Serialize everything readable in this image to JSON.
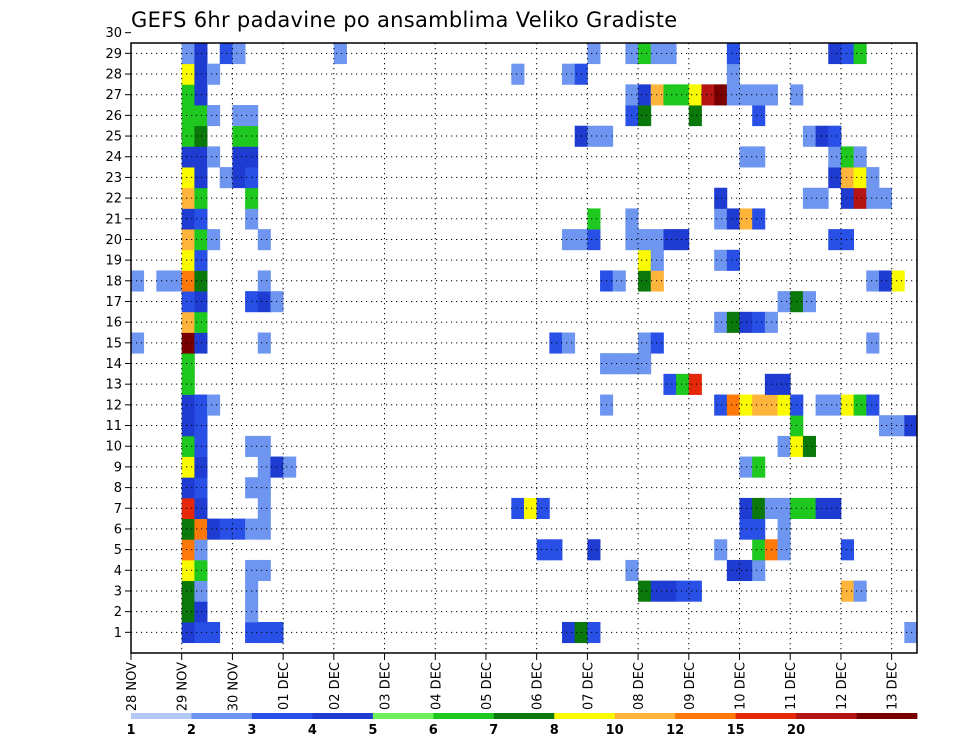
{
  "chart_data": {
    "type": "heatmap",
    "title": "GEFS 6hr padavine po ansamblima Veliko Gradiste",
    "xlabel": "",
    "ylabel": "",
    "y_members": [
      1,
      30
    ],
    "y_ticks": [
      "1",
      "2",
      "3",
      "4",
      "5",
      "6",
      "7",
      "8",
      "9",
      "10",
      "11",
      "12",
      "13",
      "14",
      "15",
      "16",
      "17",
      "18",
      "19",
      "20",
      "21",
      "22",
      "23",
      "24",
      "25",
      "26",
      "27",
      "28",
      "29",
      "30"
    ],
    "x_range_steps": [
      0,
      62
    ],
    "x_ticks": [
      {
        "label": "28 NOV",
        "step": 0
      },
      {
        "label": "29 NOV",
        "step": 4
      },
      {
        "label": "30 NOV",
        "step": 8
      },
      {
        "label": "01 DEC",
        "step": 12
      },
      {
        "label": "02 DEC",
        "step": 16
      },
      {
        "label": "03 DEC",
        "step": 20
      },
      {
        "label": "04 DEC",
        "step": 24
      },
      {
        "label": "05 DEC",
        "step": 28
      },
      {
        "label": "06 DEC",
        "step": 32
      },
      {
        "label": "07 DEC",
        "step": 36
      },
      {
        "label": "08 DEC",
        "step": 40
      },
      {
        "label": "09 DEC",
        "step": 44
      },
      {
        "label": "10 DEC",
        "step": 48
      },
      {
        "label": "11 DEC",
        "step": 52
      },
      {
        "label": "12 DEC",
        "step": 56
      },
      {
        "label": "13 DEC",
        "step": 60
      }
    ],
    "grid": true,
    "legend": {
      "placement": "bottom",
      "labels": [
        "1",
        "2",
        "3",
        "4",
        "5",
        "6",
        "7",
        "8",
        "10",
        "12",
        "15",
        "20"
      ],
      "colors": [
        "#b4c8f5",
        "#6e96f0",
        "#2850e6",
        "#1e3cd2",
        "#6eef5a",
        "#1ec81e",
        "#0a780a",
        "#fafa00",
        "#ffb43c",
        "#ff780a",
        "#e6280a",
        "#b41414",
        "#780000"
      ]
    },
    "cells": [
      [
        1,
        4,
        3
      ],
      [
        1,
        5,
        2
      ],
      [
        1,
        6,
        2
      ],
      [
        1,
        9,
        2
      ],
      [
        1,
        10,
        2
      ],
      [
        1,
        11,
        2
      ],
      [
        1,
        34,
        3
      ],
      [
        1,
        35,
        6
      ],
      [
        1,
        36,
        2
      ],
      [
        1,
        61,
        1
      ],
      [
        2,
        4,
        6
      ],
      [
        2,
        5,
        3
      ],
      [
        2,
        9,
        1
      ],
      [
        3,
        4,
        6
      ],
      [
        3,
        5,
        1
      ],
      [
        3,
        9,
        1
      ],
      [
        3,
        40,
        6
      ],
      [
        3,
        41,
        3
      ],
      [
        3,
        42,
        3
      ],
      [
        3,
        43,
        2
      ],
      [
        3,
        44,
        2
      ],
      [
        3,
        56,
        8
      ],
      [
        3,
        57,
        1
      ],
      [
        4,
        4,
        7
      ],
      [
        4,
        5,
        5
      ],
      [
        4,
        9,
        1
      ],
      [
        4,
        10,
        1
      ],
      [
        4,
        39,
        1
      ],
      [
        4,
        47,
        3
      ],
      [
        4,
        48,
        3
      ],
      [
        4,
        49,
        1
      ],
      [
        5,
        4,
        9
      ],
      [
        5,
        5,
        1
      ],
      [
        5,
        32,
        2
      ],
      [
        5,
        33,
        2
      ],
      [
        5,
        36,
        3
      ],
      [
        5,
        46,
        1
      ],
      [
        5,
        49,
        5
      ],
      [
        5,
        50,
        9
      ],
      [
        5,
        51,
        1
      ],
      [
        5,
        56,
        2
      ],
      [
        6,
        4,
        6
      ],
      [
        6,
        5,
        9
      ],
      [
        6,
        6,
        3
      ],
      [
        6,
        7,
        2
      ],
      [
        6,
        8,
        2
      ],
      [
        6,
        9,
        1
      ],
      [
        6,
        10,
        1
      ],
      [
        6,
        48,
        2
      ],
      [
        6,
        49,
        2
      ],
      [
        6,
        51,
        1
      ],
      [
        7,
        4,
        10
      ],
      [
        7,
        5,
        3
      ],
      [
        7,
        10,
        1
      ],
      [
        7,
        30,
        2
      ],
      [
        7,
        31,
        7
      ],
      [
        7,
        32,
        2
      ],
      [
        7,
        48,
        3
      ],
      [
        7,
        49,
        6
      ],
      [
        7,
        50,
        1
      ],
      [
        7,
        51,
        1
      ],
      [
        7,
        52,
        5
      ],
      [
        7,
        53,
        5
      ],
      [
        7,
        54,
        3
      ],
      [
        7,
        55,
        3
      ],
      [
        8,
        4,
        3
      ],
      [
        8,
        5,
        2
      ],
      [
        8,
        9,
        1
      ],
      [
        8,
        10,
        1
      ],
      [
        9,
        4,
        7
      ],
      [
        9,
        5,
        3
      ],
      [
        9,
        10,
        1
      ],
      [
        9,
        11,
        3
      ],
      [
        9,
        12,
        1
      ],
      [
        9,
        48,
        1
      ],
      [
        9,
        49,
        5
      ],
      [
        10,
        4,
        5
      ],
      [
        10,
        5,
        2
      ],
      [
        10,
        9,
        1
      ],
      [
        10,
        10,
        1
      ],
      [
        10,
        51,
        1
      ],
      [
        10,
        52,
        7
      ],
      [
        10,
        53,
        6
      ],
      [
        11,
        4,
        3
      ],
      [
        11,
        5,
        2
      ],
      [
        11,
        52,
        5
      ],
      [
        11,
        59,
        1
      ],
      [
        11,
        60,
        1
      ],
      [
        11,
        61,
        3
      ],
      [
        11,
        62,
        2
      ],
      [
        12,
        4,
        3
      ],
      [
        12,
        5,
        2
      ],
      [
        12,
        6,
        1
      ],
      [
        12,
        37,
        1
      ],
      [
        12,
        46,
        2
      ],
      [
        12,
        47,
        9
      ],
      [
        12,
        48,
        7
      ],
      [
        12,
        49,
        8
      ],
      [
        12,
        50,
        8
      ],
      [
        12,
        51,
        7
      ],
      [
        12,
        52,
        2
      ],
      [
        12,
        54,
        1
      ],
      [
        12,
        55,
        1
      ],
      [
        12,
        56,
        7
      ],
      [
        12,
        57,
        5
      ],
      [
        12,
        58,
        2
      ],
      [
        13,
        4,
        5
      ],
      [
        13,
        42,
        2
      ],
      [
        13,
        43,
        5
      ],
      [
        13,
        44,
        10
      ],
      [
        13,
        50,
        3
      ],
      [
        13,
        51,
        3
      ],
      [
        14,
        4,
        5
      ],
      [
        14,
        37,
        1
      ],
      [
        14,
        38,
        1
      ],
      [
        14,
        39,
        1
      ],
      [
        14,
        40,
        1
      ],
      [
        15,
        0,
        1
      ],
      [
        15,
        4,
        12
      ],
      [
        15,
        5,
        3
      ],
      [
        15,
        10,
        1
      ],
      [
        15,
        33,
        2
      ],
      [
        15,
        34,
        1
      ],
      [
        15,
        40,
        1
      ],
      [
        15,
        41,
        2
      ],
      [
        15,
        58,
        1
      ],
      [
        16,
        4,
        8
      ],
      [
        16,
        5,
        5
      ],
      [
        16,
        46,
        1
      ],
      [
        16,
        47,
        6
      ],
      [
        16,
        48,
        3
      ],
      [
        16,
        49,
        2
      ],
      [
        16,
        50,
        1
      ],
      [
        17,
        4,
        2
      ],
      [
        17,
        5,
        3
      ],
      [
        17,
        9,
        2
      ],
      [
        17,
        10,
        3
      ],
      [
        17,
        11,
        1
      ],
      [
        17,
        51,
        1
      ],
      [
        17,
        52,
        6
      ],
      [
        17,
        53,
        1
      ],
      [
        18,
        0,
        1
      ],
      [
        18,
        2,
        1
      ],
      [
        18,
        3,
        1
      ],
      [
        18,
        4,
        9
      ],
      [
        18,
        5,
        6
      ],
      [
        18,
        10,
        1
      ],
      [
        18,
        37,
        2
      ],
      [
        18,
        38,
        1
      ],
      [
        18,
        40,
        6
      ],
      [
        18,
        41,
        8
      ],
      [
        18,
        58,
        1
      ],
      [
        18,
        59,
        3
      ],
      [
        18,
        60,
        7
      ],
      [
        19,
        4,
        7
      ],
      [
        19,
        5,
        2
      ],
      [
        19,
        40,
        7
      ],
      [
        19,
        41,
        1
      ],
      [
        19,
        46,
        1
      ],
      [
        19,
        47,
        2
      ],
      [
        20,
        4,
        8
      ],
      [
        20,
        5,
        5
      ],
      [
        20,
        6,
        1
      ],
      [
        20,
        10,
        1
      ],
      [
        20,
        34,
        1
      ],
      [
        20,
        35,
        1
      ],
      [
        20,
        36,
        2
      ],
      [
        20,
        39,
        1
      ],
      [
        20,
        40,
        1
      ],
      [
        20,
        41,
        1
      ],
      [
        20,
        42,
        3
      ],
      [
        20,
        43,
        3
      ],
      [
        20,
        55,
        2
      ],
      [
        20,
        56,
        2
      ],
      [
        21,
        4,
        3
      ],
      [
        21,
        5,
        2
      ],
      [
        21,
        9,
        1
      ],
      [
        21,
        36,
        5
      ],
      [
        21,
        39,
        1
      ],
      [
        21,
        46,
        1
      ],
      [
        21,
        47,
        3
      ],
      [
        21,
        48,
        8
      ],
      [
        21,
        49,
        2
      ],
      [
        22,
        4,
        8
      ],
      [
        22,
        5,
        5
      ],
      [
        22,
        9,
        5
      ],
      [
        22,
        46,
        3
      ],
      [
        22,
        53,
        1
      ],
      [
        22,
        54,
        1
      ],
      [
        22,
        56,
        3
      ],
      [
        22,
        57,
        11
      ],
      [
        22,
        58,
        1
      ],
      [
        22,
        59,
        1
      ],
      [
        23,
        4,
        7
      ],
      [
        23,
        5,
        3
      ],
      [
        23,
        7,
        1
      ],
      [
        23,
        8,
        3
      ],
      [
        23,
        9,
        2
      ],
      [
        23,
        55,
        3
      ],
      [
        23,
        56,
        8
      ],
      [
        23,
        57,
        7
      ],
      [
        23,
        58,
        1
      ],
      [
        24,
        4,
        3
      ],
      [
        24,
        5,
        3
      ],
      [
        24,
        6,
        1
      ],
      [
        24,
        8,
        3
      ],
      [
        24,
        9,
        3
      ],
      [
        24,
        48,
        1
      ],
      [
        24,
        49,
        1
      ],
      [
        24,
        55,
        1
      ],
      [
        24,
        56,
        5
      ],
      [
        24,
        57,
        1
      ],
      [
        25,
        4,
        5
      ],
      [
        25,
        5,
        6
      ],
      [
        25,
        8,
        5
      ],
      [
        25,
        9,
        5
      ],
      [
        25,
        35,
        3
      ],
      [
        25,
        36,
        1
      ],
      [
        25,
        37,
        1
      ],
      [
        25,
        53,
        1
      ],
      [
        25,
        54,
        3
      ],
      [
        25,
        55,
        2
      ],
      [
        26,
        4,
        5
      ],
      [
        26,
        5,
        5
      ],
      [
        26,
        6,
        1
      ],
      [
        26,
        8,
        1
      ],
      [
        26,
        9,
        1
      ],
      [
        26,
        39,
        2
      ],
      [
        26,
        40,
        6
      ],
      [
        26,
        44,
        6
      ],
      [
        26,
        49,
        2
      ],
      [
        27,
        4,
        5
      ],
      [
        27,
        5,
        3
      ],
      [
        27,
        39,
        1
      ],
      [
        27,
        40,
        3
      ],
      [
        27,
        41,
        8
      ],
      [
        27,
        42,
        5
      ],
      [
        27,
        43,
        5
      ],
      [
        27,
        44,
        7
      ],
      [
        27,
        45,
        11
      ],
      [
        27,
        46,
        12
      ],
      [
        27,
        47,
        1
      ],
      [
        27,
        48,
        1
      ],
      [
        27,
        49,
        1
      ],
      [
        27,
        50,
        1
      ],
      [
        27,
        52,
        1
      ],
      [
        28,
        4,
        7
      ],
      [
        28,
        5,
        3
      ],
      [
        28,
        6,
        1
      ],
      [
        28,
        30,
        1
      ],
      [
        28,
        34,
        1
      ],
      [
        28,
        35,
        2
      ],
      [
        28,
        47,
        1
      ],
      [
        29,
        4,
        1
      ],
      [
        29,
        5,
        3
      ],
      [
        29,
        7,
        2
      ],
      [
        29,
        8,
        1
      ],
      [
        29,
        16,
        1
      ],
      [
        29,
        36,
        1
      ],
      [
        29,
        39,
        1
      ],
      [
        29,
        40,
        5
      ],
      [
        29,
        41,
        1
      ],
      [
        29,
        42,
        1
      ],
      [
        29,
        47,
        2
      ],
      [
        29,
        55,
        3
      ],
      [
        29,
        56,
        2
      ],
      [
        29,
        57,
        5
      ]
    ]
  }
}
